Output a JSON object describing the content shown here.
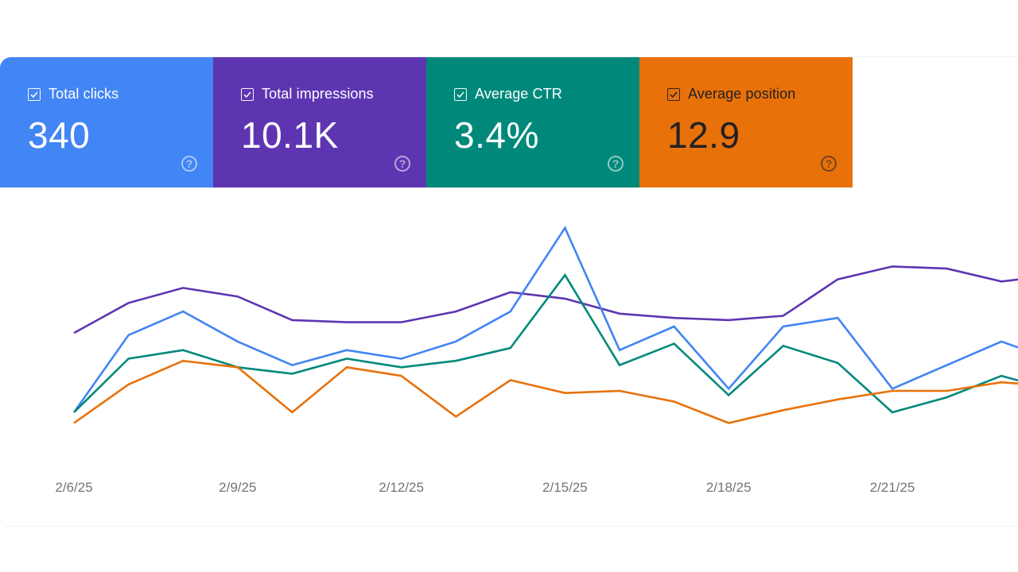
{
  "cards": [
    {
      "label": "Total clicks",
      "value": "340",
      "bg": "#4285f4",
      "fg": "#ffffff",
      "checked": true,
      "help_icon": "help-circle-icon"
    },
    {
      "label": "Total impressions",
      "value": "10.1K",
      "bg": "#5e35b1",
      "fg": "#ffffff",
      "checked": true,
      "help_icon": "help-circle-icon"
    },
    {
      "label": "Average CTR",
      "value": "3.4%",
      "bg": "#00897b",
      "fg": "#ffffff",
      "checked": true,
      "help_icon": "help-circle-icon"
    },
    {
      "label": "Average position",
      "value": "12.9",
      "bg": "#e8710a",
      "fg": "#202124",
      "checked": true,
      "help_icon": "help-circle-icon"
    }
  ],
  "help_glyph": "?",
  "chart_data": {
    "type": "line",
    "title": "",
    "xlabel": "",
    "ylabel": "",
    "grid": false,
    "legend": "top (metric cards)",
    "x": [
      "2/6/25",
      "2/7/25",
      "2/8/25",
      "2/9/25",
      "2/10/25",
      "2/11/25",
      "2/12/25",
      "2/13/25",
      "2/14/25",
      "2/15/25",
      "2/16/25",
      "2/17/25",
      "2/18/25",
      "2/19/25",
      "2/20/25",
      "2/21/25",
      "2/22/25",
      "2/23/25",
      "2/24/25"
    ],
    "x_ticks": [
      "2/6/25",
      "2/9/25",
      "2/12/25",
      "2/15/25",
      "2/18/25",
      "2/21/25"
    ],
    "y_units": "normalized per-series scale (0-100, no y-axis shown)",
    "ylim": [
      0,
      100
    ],
    "series": [
      {
        "name": "Total impressions",
        "color": "#5e35b1",
        "values": [
          47,
          61,
          68,
          64,
          53,
          52,
          52,
          57,
          66,
          63,
          56,
          54,
          53,
          55,
          72,
          78,
          77,
          71,
          74
        ]
      },
      {
        "name": "Total clicks",
        "color": "#4285f4",
        "values": [
          10,
          46,
          57,
          43,
          32,
          39,
          35,
          43,
          57,
          96,
          39,
          50,
          21,
          50,
          54,
          21,
          32,
          43,
          34
        ]
      },
      {
        "name": "Average CTR",
        "color": "#00897b",
        "values": [
          10,
          35,
          39,
          31,
          28,
          35,
          31,
          34,
          40,
          74,
          32,
          42,
          18,
          41,
          33,
          10,
          17,
          27,
          20
        ]
      },
      {
        "name": "Average position",
        "color": "#e8710a",
        "values": [
          5,
          23,
          34,
          31,
          10,
          31,
          27,
          8,
          25,
          19,
          20,
          15,
          5,
          11,
          16,
          20,
          20,
          24,
          22
        ]
      }
    ]
  }
}
